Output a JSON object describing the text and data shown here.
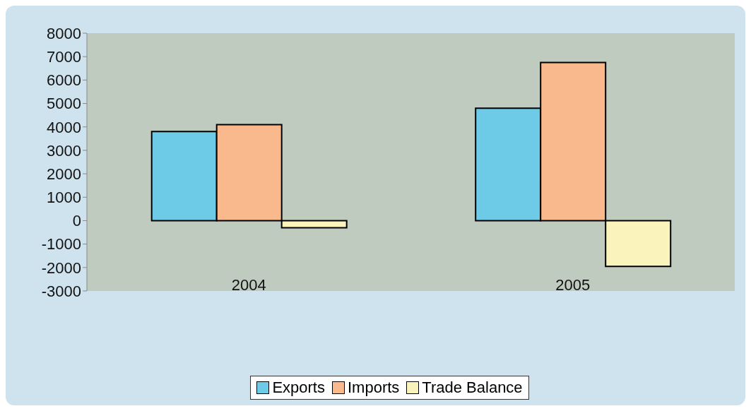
{
  "chart_data": {
    "type": "bar",
    "categories": [
      "2004",
      "2005"
    ],
    "series": [
      {
        "name": "Exports",
        "color": "#6ecbe8",
        "values": [
          3800,
          4800
        ]
      },
      {
        "name": "Imports",
        "color": "#f9b98c",
        "values": [
          4100,
          6750
        ]
      },
      {
        "name": "Trade Balance",
        "color": "#fbf3bc",
        "values": [
          -300,
          -1950
        ]
      }
    ],
    "ylim": [
      -3000,
      8000
    ],
    "yticks": [
      -3000,
      -2000,
      -1000,
      0,
      1000,
      2000,
      3000,
      4000,
      5000,
      6000,
      7000,
      8000
    ],
    "grid": false,
    "legend": "bottom"
  }
}
